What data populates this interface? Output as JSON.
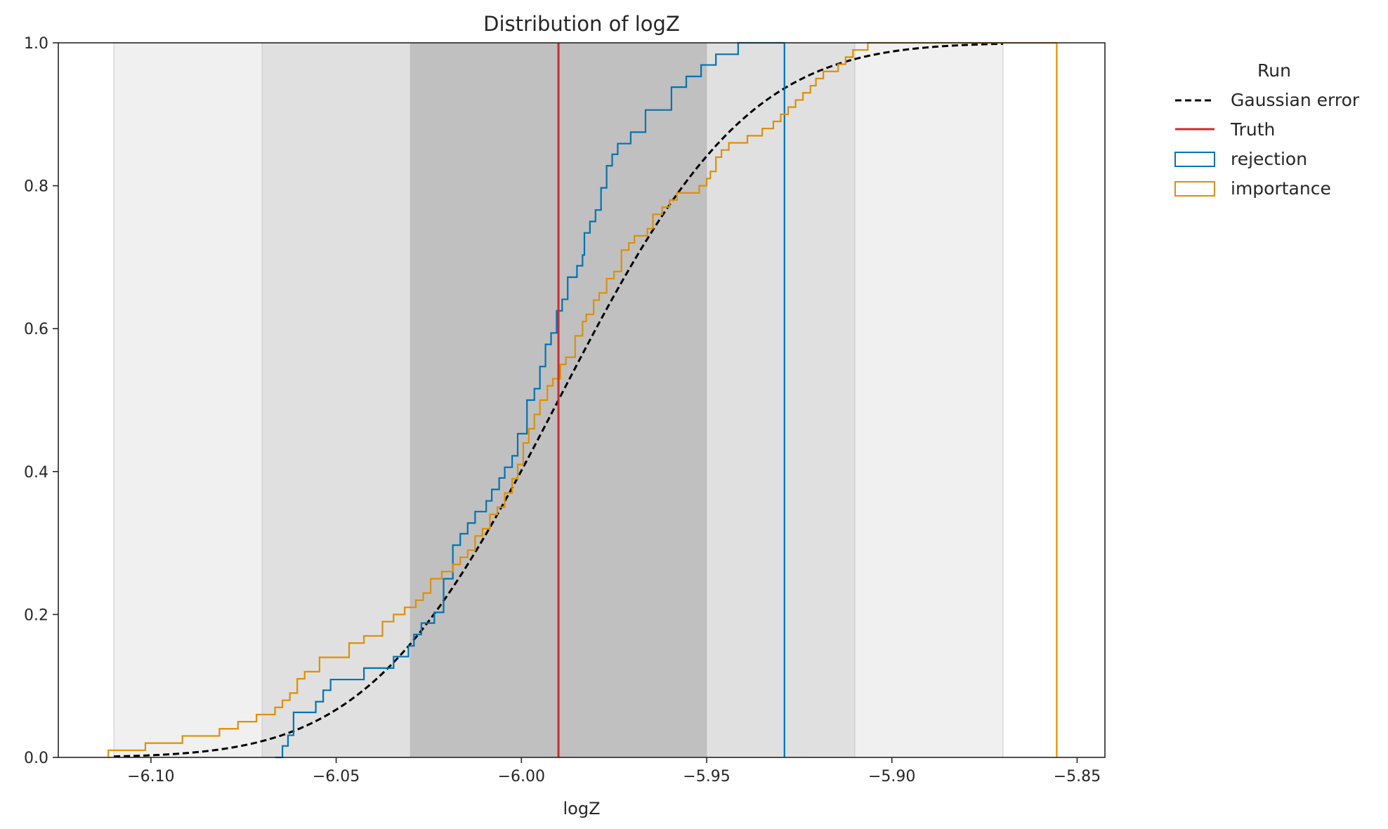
{
  "chart_data": {
    "type": "line",
    "title": "Distribution of logZ",
    "xlabel": "logZ",
    "ylabel": "",
    "xlim": [
      -6.125,
      -5.8425
    ],
    "ylim": [
      0,
      1
    ],
    "x_ticks": [
      -6.1,
      -6.05,
      -6.0,
      -5.95,
      -5.9,
      -5.85
    ],
    "x_tick_labels": [
      "−6.10",
      "−6.05",
      "−6.00",
      "−5.95",
      "−5.90",
      "−5.85"
    ],
    "y_ticks": [
      0,
      0.2,
      0.4,
      0.6,
      0.8,
      1.0
    ],
    "y_tick_labels": [
      "0.0",
      "0.2",
      "0.4",
      "0.6",
      "0.8",
      "1.0"
    ],
    "grid": false,
    "legend": {
      "title": "Run",
      "position": "outside-right",
      "entries": [
        "Gaussian error",
        "Truth",
        "rejection",
        "importance"
      ]
    },
    "truth": -5.99,
    "gaussian_error": {
      "mean": -5.99,
      "sigma": 0.04,
      "x_range": [
        -6.11,
        -5.87
      ]
    },
    "bands": [
      {
        "level": "3-sigma",
        "x0": -6.11,
        "x1": -5.87,
        "color": "#f0f0f0"
      },
      {
        "level": "2-sigma",
        "x0": -6.07,
        "x1": -5.91,
        "color": "#e0e0e0"
      },
      {
        "level": "1-sigma",
        "x0": -6.03,
        "x1": -5.95,
        "color": "#c0c0c0"
      }
    ],
    "series": [
      {
        "name": "rejection",
        "color": "#0173b2",
        "step_x": [
          -6.0665,
          -6.0645,
          -6.063,
          -6.0615,
          -6.0555,
          -6.0535,
          -6.0515,
          -6.0425,
          -6.0345,
          -6.0305,
          -6.029,
          -6.027,
          -6.0235,
          -6.021,
          -6.0185,
          -6.0165,
          -6.0145,
          -6.0125,
          -6.0095,
          -6.008,
          -6.006,
          -6.0045,
          -6.0025,
          -6.001,
          -5.9985,
          -5.9965,
          -5.995,
          -5.9935,
          -5.992,
          -5.9905,
          -5.989,
          -5.9875,
          -5.985,
          -5.9835,
          -5.983,
          -5.9815,
          -5.98,
          -5.9785,
          -5.977,
          -5.9755,
          -5.974,
          -5.9705,
          -5.9665,
          -5.9595,
          -5.9555,
          -5.9515,
          -5.9475,
          -5.9415,
          -5.937,
          -5.935,
          -5.9335,
          -5.929
        ],
        "step_y": [
          0.0,
          0.016,
          0.031,
          0.063,
          0.078,
          0.094,
          0.109,
          0.125,
          0.141,
          0.156,
          0.172,
          0.188,
          0.203,
          0.25,
          0.297,
          0.313,
          0.328,
          0.344,
          0.359,
          0.375,
          0.391,
          0.406,
          0.422,
          0.453,
          0.5,
          0.516,
          0.547,
          0.578,
          0.594,
          0.625,
          0.641,
          0.672,
          0.688,
          0.703,
          0.734,
          0.75,
          0.766,
          0.797,
          0.828,
          0.844,
          0.859,
          0.875,
          0.906,
          0.938,
          0.953,
          0.969,
          0.984,
          1.0,
          1.0,
          1.0,
          1.0,
          1.0
        ],
        "final_x": -5.929
      },
      {
        "name": "importance",
        "color": "#de8f05",
        "step_x": [
          -6.1115,
          -6.1015,
          -6.0915,
          -6.0815,
          -6.0765,
          -6.0715,
          -6.0665,
          -6.0645,
          -6.0625,
          -6.0605,
          -6.0585,
          -6.0545,
          -6.0465,
          -6.0425,
          -6.0375,
          -6.0345,
          -6.0315,
          -6.0285,
          -6.0265,
          -6.0245,
          -6.0215,
          -6.0185,
          -6.0165,
          -6.0145,
          -6.0125,
          -6.0105,
          -6.0085,
          -6.0065,
          -6.0045,
          -6.0025,
          -6.001,
          -5.9995,
          -5.998,
          -5.9965,
          -5.995,
          -5.993,
          -5.9915,
          -5.9895,
          -5.988,
          -5.9855,
          -5.9835,
          -5.9825,
          -5.9805,
          -5.979,
          -5.977,
          -5.975,
          -5.973,
          -5.971,
          -5.9695,
          -5.966,
          -5.9645,
          -5.962,
          -5.96,
          -5.958,
          -5.956,
          -5.952,
          -5.95,
          -5.949,
          -5.9475,
          -5.946,
          -5.944,
          -5.942,
          -5.939,
          -5.935,
          -5.932,
          -5.93,
          -5.928,
          -5.926,
          -5.924,
          -5.922,
          -5.9205,
          -5.9185,
          -5.9165,
          -5.9145,
          -5.9125,
          -5.9105,
          -5.9065,
          -5.8985,
          -5.8945,
          -5.8805,
          -5.8705,
          -5.8555
        ],
        "step_y": [
          0.01,
          0.02,
          0.03,
          0.04,
          0.05,
          0.06,
          0.07,
          0.08,
          0.09,
          0.11,
          0.12,
          0.14,
          0.16,
          0.17,
          0.19,
          0.2,
          0.21,
          0.22,
          0.23,
          0.25,
          0.26,
          0.27,
          0.28,
          0.29,
          0.31,
          0.32,
          0.34,
          0.35,
          0.37,
          0.39,
          0.41,
          0.44,
          0.46,
          0.48,
          0.5,
          0.52,
          0.53,
          0.55,
          0.56,
          0.59,
          0.61,
          0.62,
          0.64,
          0.65,
          0.67,
          0.68,
          0.71,
          0.72,
          0.73,
          0.74,
          0.76,
          0.77,
          0.78,
          0.79,
          0.79,
          0.8,
          0.81,
          0.82,
          0.84,
          0.85,
          0.86,
          0.86,
          0.87,
          0.88,
          0.89,
          0.9,
          0.91,
          0.92,
          0.93,
          0.94,
          0.95,
          0.96,
          0.96,
          0.97,
          0.98,
          0.99,
          1.0,
          1.0,
          1.0,
          1.0,
          1.0,
          1.0
        ],
        "final_x": -5.8555
      }
    ],
    "colors": {
      "gaussian": "#000000",
      "truth": "#d62728",
      "rejection": "#0173b2",
      "importance": "#de8f05",
      "axes": "#262626"
    }
  }
}
